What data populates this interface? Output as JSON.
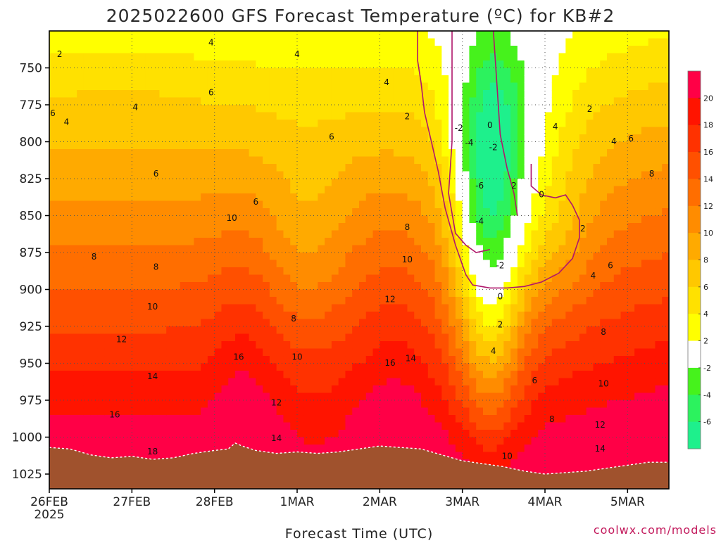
{
  "chart_data": {
    "type": "contour",
    "title": "2025022600 GFS Forecast Temperature (ºC) for KB#2",
    "xlabel": "Forecast Time (UTC)",
    "ylabel": "",
    "y_axis": {
      "inverted": true,
      "range": [
        725,
        1035
      ],
      "ticks": [
        750,
        775,
        800,
        825,
        850,
        875,
        900,
        925,
        950,
        975,
        1000,
        1025
      ]
    },
    "x_axis": {
      "range_hours": [
        0,
        180
      ],
      "ticks": [
        {
          "hour": 0,
          "label": "26FEB",
          "sublabel": "2025"
        },
        {
          "hour": 24,
          "label": "27FEB"
        },
        {
          "hour": 48,
          "label": "28FEB"
        },
        {
          "hour": 72,
          "label": "1MAR"
        },
        {
          "hour": 96,
          "label": "2MAR"
        },
        {
          "hour": 120,
          "label": "3MAR"
        },
        {
          "hour": 144,
          "label": "4MAR"
        },
        {
          "hour": 168,
          "label": "5MAR"
        }
      ]
    },
    "grid": true,
    "color_scale": [
      {
        "min": -8,
        "max": -6,
        "color": "#1ef08c"
      },
      {
        "min": -6,
        "max": -4,
        "color": "#2cf25e"
      },
      {
        "min": -4,
        "max": -2,
        "color": "#46f21c"
      },
      {
        "min": -2,
        "max": 2,
        "color": "#ffffff"
      },
      {
        "min": 2,
        "max": 4,
        "color": "#ffff00"
      },
      {
        "min": 4,
        "max": 6,
        "color": "#ffe100"
      },
      {
        "min": 6,
        "max": 8,
        "color": "#ffc800"
      },
      {
        "min": 8,
        "max": 10,
        "color": "#ffaa00"
      },
      {
        "min": 10,
        "max": 12,
        "color": "#ff8c00"
      },
      {
        "min": 12,
        "max": 14,
        "color": "#ff6e00"
      },
      {
        "min": 14,
        "max": 16,
        "color": "#ff5000"
      },
      {
        "min": 16,
        "max": 18,
        "color": "#ff3200"
      },
      {
        "min": 18,
        "max": 20,
        "color": "#ff1400"
      },
      {
        "min": 20,
        "max": 22,
        "color": "#ff0046"
      }
    ],
    "colorbar_labels": [
      "20",
      "18",
      "16",
      "14",
      "12",
      "10",
      "8",
      "6",
      "4",
      "2",
      "-2",
      "-4",
      "-6"
    ],
    "terrain": {
      "color": "#a0522d",
      "points": [
        [
          0,
          1007
        ],
        [
          6,
          1008
        ],
        [
          12,
          1012
        ],
        [
          18,
          1014
        ],
        [
          24,
          1013
        ],
        [
          30,
          1015
        ],
        [
          36,
          1014
        ],
        [
          42,
          1011
        ],
        [
          48,
          1009
        ],
        [
          52,
          1008
        ],
        [
          54,
          1004
        ],
        [
          56,
          1006
        ],
        [
          60,
          1009
        ],
        [
          66,
          1011
        ],
        [
          72,
          1010
        ],
        [
          78,
          1011
        ],
        [
          84,
          1010
        ],
        [
          90,
          1008
        ],
        [
          96,
          1006
        ],
        [
          102,
          1007
        ],
        [
          108,
          1008
        ],
        [
          114,
          1012
        ],
        [
          120,
          1016
        ],
        [
          126,
          1018
        ],
        [
          132,
          1020
        ],
        [
          138,
          1023
        ],
        [
          144,
          1025
        ],
        [
          150,
          1024
        ],
        [
          156,
          1023
        ],
        [
          162,
          1021
        ],
        [
          168,
          1019
        ],
        [
          174,
          1017
        ],
        [
          180,
          1017
        ]
      ]
    },
    "contour_labels": [
      {
        "hour": 3,
        "p": 741,
        "text": "2"
      },
      {
        "hour": 47,
        "p": 733,
        "text": "4"
      },
      {
        "hour": 72,
        "p": 741,
        "text": "4"
      },
      {
        "hour": 98,
        "p": 760,
        "text": "4"
      },
      {
        "hour": 104,
        "p": 783,
        "text": "2"
      },
      {
        "hour": 1,
        "p": 781,
        "text": "6"
      },
      {
        "hour": 5,
        "p": 787,
        "text": "4"
      },
      {
        "hour": 25,
        "p": 777,
        "text": "4"
      },
      {
        "hour": 47,
        "p": 767,
        "text": "6"
      },
      {
        "hour": 82,
        "p": 797,
        "text": "6"
      },
      {
        "hour": 31,
        "p": 822,
        "text": "6"
      },
      {
        "hour": 60,
        "p": 841,
        "text": "6"
      },
      {
        "hour": 13,
        "p": 878,
        "text": "8"
      },
      {
        "hour": 31,
        "p": 885,
        "text": "8"
      },
      {
        "hour": 53,
        "p": 852,
        "text": "10"
      },
      {
        "hour": 104,
        "p": 858,
        "text": "8"
      },
      {
        "hour": 104,
        "p": 880,
        "text": "10"
      },
      {
        "hour": 30,
        "p": 912,
        "text": "10"
      },
      {
        "hour": 71,
        "p": 920,
        "text": "8"
      },
      {
        "hour": 99,
        "p": 907,
        "text": "12"
      },
      {
        "hour": 105,
        "p": 947,
        "text": "14"
      },
      {
        "hour": 21,
        "p": 934,
        "text": "12"
      },
      {
        "hour": 72,
        "p": 946,
        "text": "10"
      },
      {
        "hour": 55,
        "p": 946,
        "text": "16"
      },
      {
        "hour": 30,
        "p": 959,
        "text": "14"
      },
      {
        "hour": 66,
        "p": 977,
        "text": "12"
      },
      {
        "hour": 99,
        "p": 950,
        "text": "16"
      },
      {
        "hour": 19,
        "p": 985,
        "text": "16"
      },
      {
        "hour": 66,
        "p": 1001,
        "text": "14"
      },
      {
        "hour": 30,
        "p": 1010,
        "text": "18"
      },
      {
        "hour": 119,
        "p": 791,
        "text": "-2"
      },
      {
        "hour": 128,
        "p": 789,
        "text": "0"
      },
      {
        "hour": 122,
        "p": 801,
        "text": "-4"
      },
      {
        "hour": 129,
        "p": 804,
        "text": "-2"
      },
      {
        "hour": 125,
        "p": 830,
        "text": "-6"
      },
      {
        "hour": 125,
        "p": 854,
        "text": "-4"
      },
      {
        "hour": 131,
        "p": 884,
        "text": "-2"
      },
      {
        "hour": 131,
        "p": 905,
        "text": "0"
      },
      {
        "hour": 131,
        "p": 924,
        "text": "2"
      },
      {
        "hour": 135,
        "p": 830,
        "text": "2"
      },
      {
        "hour": 143,
        "p": 836,
        "text": "0"
      },
      {
        "hour": 147,
        "p": 790,
        "text": "4"
      },
      {
        "hour": 157,
        "p": 778,
        "text": "2"
      },
      {
        "hour": 164,
        "p": 800,
        "text": "4"
      },
      {
        "hour": 169,
        "p": 798,
        "text": "6"
      },
      {
        "hour": 175,
        "p": 822,
        "text": "8"
      },
      {
        "hour": 155,
        "p": 859,
        "text": "2"
      },
      {
        "hour": 158,
        "p": 891,
        "text": "4"
      },
      {
        "hour": 163,
        "p": 884,
        "text": "6"
      },
      {
        "hour": 129,
        "p": 942,
        "text": "4"
      },
      {
        "hour": 141,
        "p": 962,
        "text": "6"
      },
      {
        "hour": 161,
        "p": 929,
        "text": "8"
      },
      {
        "hour": 161,
        "p": 964,
        "text": "10"
      },
      {
        "hour": 146,
        "p": 988,
        "text": "8"
      },
      {
        "hour": 160,
        "p": 992,
        "text": "12"
      },
      {
        "hour": 160,
        "p": 1008,
        "text": "14"
      },
      {
        "hour": 133,
        "p": 1013,
        "text": "10"
      }
    ],
    "zero_contour_paths": [
      [
        [
          107,
          725
        ],
        [
          107,
          745
        ],
        [
          108,
          760
        ],
        [
          109,
          780
        ],
        [
          111,
          800
        ],
        [
          113,
          820
        ],
        [
          115,
          845
        ],
        [
          118,
          870
        ],
        [
          121,
          890
        ],
        [
          123,
          897
        ],
        [
          128,
          899
        ],
        [
          133,
          899
        ],
        [
          138,
          898
        ],
        [
          143,
          895
        ],
        [
          148,
          889
        ],
        [
          152,
          879
        ],
        [
          154,
          865
        ],
        [
          154,
          853
        ],
        [
          152,
          843
        ],
        [
          150,
          836
        ],
        [
          147,
          838
        ],
        [
          143,
          836
        ],
        [
          140,
          830
        ],
        [
          140,
          815
        ]
      ],
      [
        [
          117,
          725
        ],
        [
          117,
          760
        ],
        [
          117,
          800
        ],
        [
          116,
          835
        ],
        [
          118,
          862
        ],
        [
          121,
          870
        ],
        [
          124,
          875
        ],
        [
          128,
          873
        ]
      ],
      [
        [
          129,
          725
        ],
        [
          130,
          760
        ],
        [
          131,
          795
        ],
        [
          133,
          818
        ],
        [
          135,
          835
        ],
        [
          136,
          850
        ]
      ]
    ],
    "credit": "coolwx.com/models"
  }
}
